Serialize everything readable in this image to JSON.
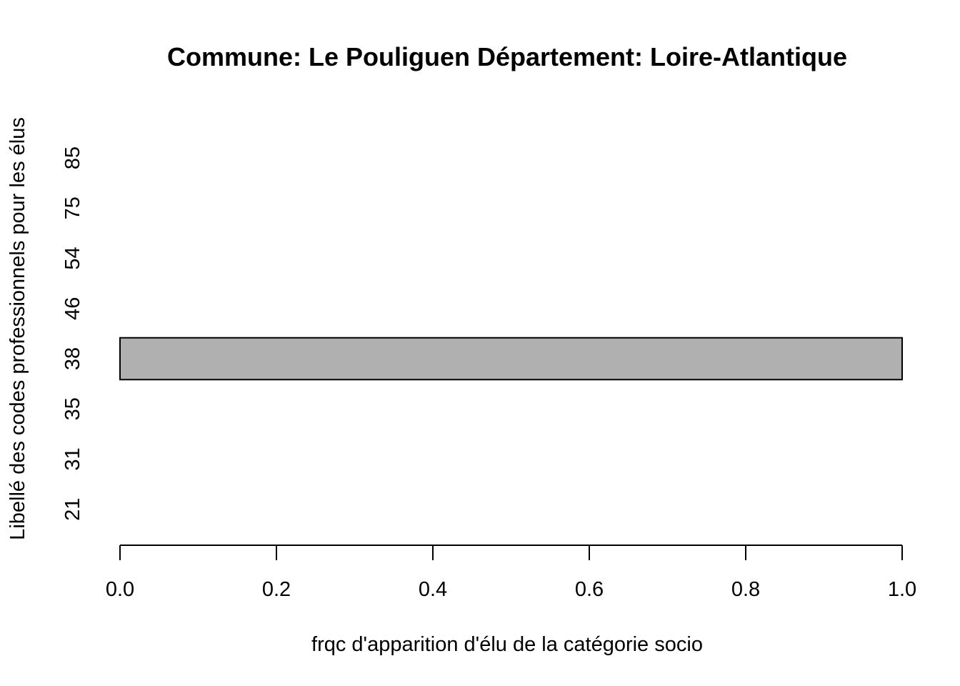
{
  "chart_data": {
    "type": "bar",
    "orientation": "horizontal",
    "title": "Commune:  Le Pouliguen Département: Loire-Atlantique",
    "xlabel": "frqc d'apparition d'élu de la catégorie socio",
    "ylabel": "Libellé des codes professionnels pour les élus",
    "categories": [
      "21",
      "31",
      "35",
      "38",
      "46",
      "54",
      "75",
      "85"
    ],
    "values": [
      0,
      0,
      0,
      1,
      0,
      0,
      0,
      0
    ],
    "xlim": [
      0,
      1
    ],
    "xticks": [
      "0.0",
      "0.2",
      "0.4",
      "0.6",
      "0.8",
      "1.0"
    ],
    "grid": false,
    "bar_color": "#b0b0b0",
    "bar_outline": "#000000"
  }
}
